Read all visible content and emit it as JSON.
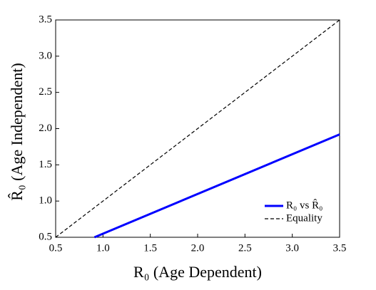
{
  "chart_data": {
    "type": "line",
    "xlabel": "R₀ (Age Dependent)",
    "ylabel": "R̂₀ (Age Independent)",
    "series": [
      {
        "name": "R₀ vs R̂₀",
        "color": "#0000ff",
        "dashed": false,
        "x": [
          0.91,
          3.5
        ],
        "values": [
          0.5,
          1.92
        ]
      },
      {
        "name": "Equality",
        "color": "#000000",
        "dashed": true,
        "x": [
          0.5,
          3.5
        ],
        "values": [
          0.5,
          3.5
        ]
      }
    ],
    "xlim": [
      0.5,
      3.5
    ],
    "ylim": [
      0.5,
      3.5
    ],
    "xticks": [
      0.5,
      {
        "value": 1,
        "label": "1.0"
      },
      1.5,
      {
        "value": 2,
        "label": "2.0"
      },
      2.5,
      {
        "value": 3,
        "label": "3.0"
      },
      3.5
    ],
    "yticks": [
      0.5,
      {
        "value": 1,
        "label": "1.0"
      },
      1.5,
      {
        "value": 2,
        "label": "2.0"
      },
      2.5,
      {
        "value": 3,
        "label": "3.0"
      },
      3.5
    ],
    "legend": "lower-right",
    "grid": false
  }
}
